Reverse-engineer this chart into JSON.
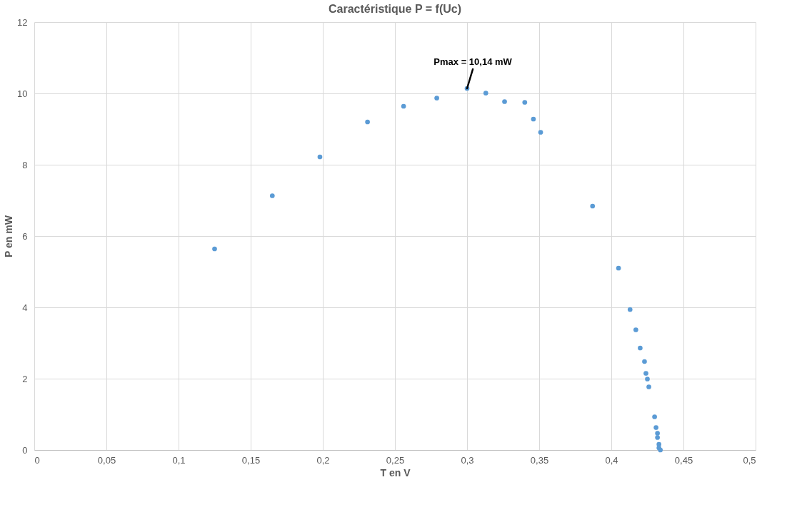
{
  "chart_data": {
    "type": "scatter",
    "title": "Caractéristique P = f(Uc)",
    "xlabel": "T en V",
    "ylabel": "P en mW",
    "x": [
      0.125,
      0.165,
      0.198,
      0.231,
      0.256,
      0.279,
      0.3,
      0.313,
      0.326,
      0.34,
      0.346,
      0.351,
      0.387,
      0.405,
      0.413,
      0.417,
      0.42,
      0.423,
      0.424,
      0.425,
      0.426,
      0.43,
      0.431,
      0.432,
      0.432,
      0.433,
      0.433,
      0.434
    ],
    "series": [
      {
        "color": "#5b9bd5",
        "values": [
          5.64,
          7.13,
          8.22,
          9.2,
          9.64,
          9.87,
          10.14,
          10.01,
          9.77,
          9.75,
          9.28,
          8.91,
          6.84,
          5.1,
          3.94,
          3.37,
          2.86,
          2.48,
          2.15,
          1.99,
          1.77,
          0.93,
          0.63,
          0.47,
          0.35,
          0.16,
          0.06,
          0.0
        ]
      }
    ],
    "xlim": [
      0,
      0.5
    ],
    "xticks": [
      0,
      {
        "value": 0.05,
        "label": "0,05"
      },
      {
        "value": 0.1,
        "label": "0,1"
      },
      {
        "value": 0.15,
        "label": "0,15"
      },
      {
        "value": 0.2,
        "label": "0,2"
      },
      {
        "value": 0.25,
        "label": "0,25"
      },
      {
        "value": 0.3,
        "label": "0,3"
      },
      {
        "value": 0.35,
        "label": "0,35"
      },
      {
        "value": 0.4,
        "label": "0,4"
      },
      {
        "value": 0.45,
        "label": "0,45"
      },
      {
        "value": 0.5,
        "label": "0,5"
      }
    ],
    "ylim": [
      0,
      12
    ],
    "yticks": [
      0,
      2,
      4,
      6,
      8,
      10,
      12
    ],
    "grid": true,
    "legend": false,
    "marker": "circle",
    "annotations": [
      {
        "text": "Pmax = 10,14 mW",
        "x": 0.3,
        "y": 10.14
      }
    ]
  }
}
